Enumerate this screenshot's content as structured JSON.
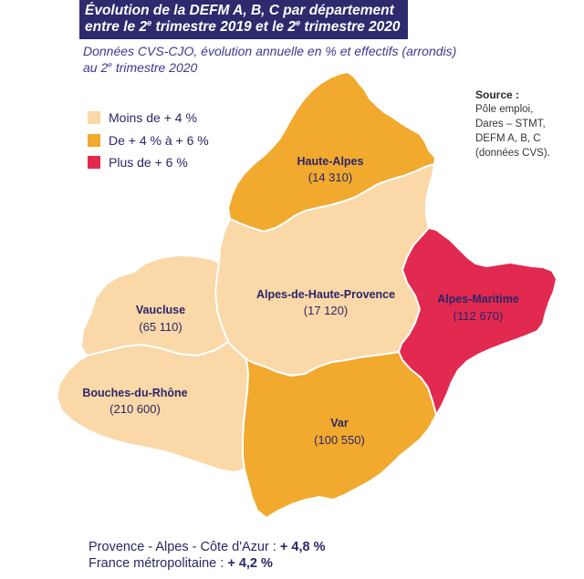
{
  "title": {
    "line1": "Évolution de la DEFM A, B, C par département",
    "line2": "entre le 2e trimestre 2019 et le 2e trimestre 2020"
  },
  "subtitle": {
    "line1": "Données CVS-CJO, évolution annuelle en % et effectifs (arrondis)",
    "line2": "au 2e trimestre 2020"
  },
  "legend": {
    "items": [
      {
        "label": "Moins de + 4 %",
        "color": "#fad8a8"
      },
      {
        "label": "De + 4 % à + 6 %",
        "color": "#f1a92e"
      },
      {
        "label": "Plus de + 6 %",
        "color": "#e2294f"
      }
    ]
  },
  "source": {
    "heading": "Source :",
    "lines": [
      "Pôle emploi,",
      "Dares – STMT,",
      "DEFM A, B, C",
      "(données CVS)."
    ]
  },
  "map": {
    "departments": [
      {
        "name": "Haute-Alpes",
        "count": "(14 310)",
        "color": "#f1a92e"
      },
      {
        "name": "Alpes-de-Haute-Provence",
        "count": "(17 120)",
        "color": "#fad8a8"
      },
      {
        "name": "Alpes-Maritime",
        "count": "(112 670)",
        "color": "#e2294f"
      },
      {
        "name": "Vaucluse",
        "count": "(65 110)",
        "color": "#fad8a8"
      },
      {
        "name": "Bouches-du-Rhône",
        "count": "(210 600)",
        "color": "#fad8a8"
      },
      {
        "name": "Var",
        "count": "(100 550)",
        "color": "#f1a92e"
      }
    ]
  },
  "summary": [
    {
      "label": "Provence - Alpes - Côte d'Azur :",
      "value": "+ 4,8 %"
    },
    {
      "label": "France métropolitaine :",
      "value": "+ 4,2 %"
    }
  ],
  "colors": {
    "banner": "#2d2a6e"
  }
}
